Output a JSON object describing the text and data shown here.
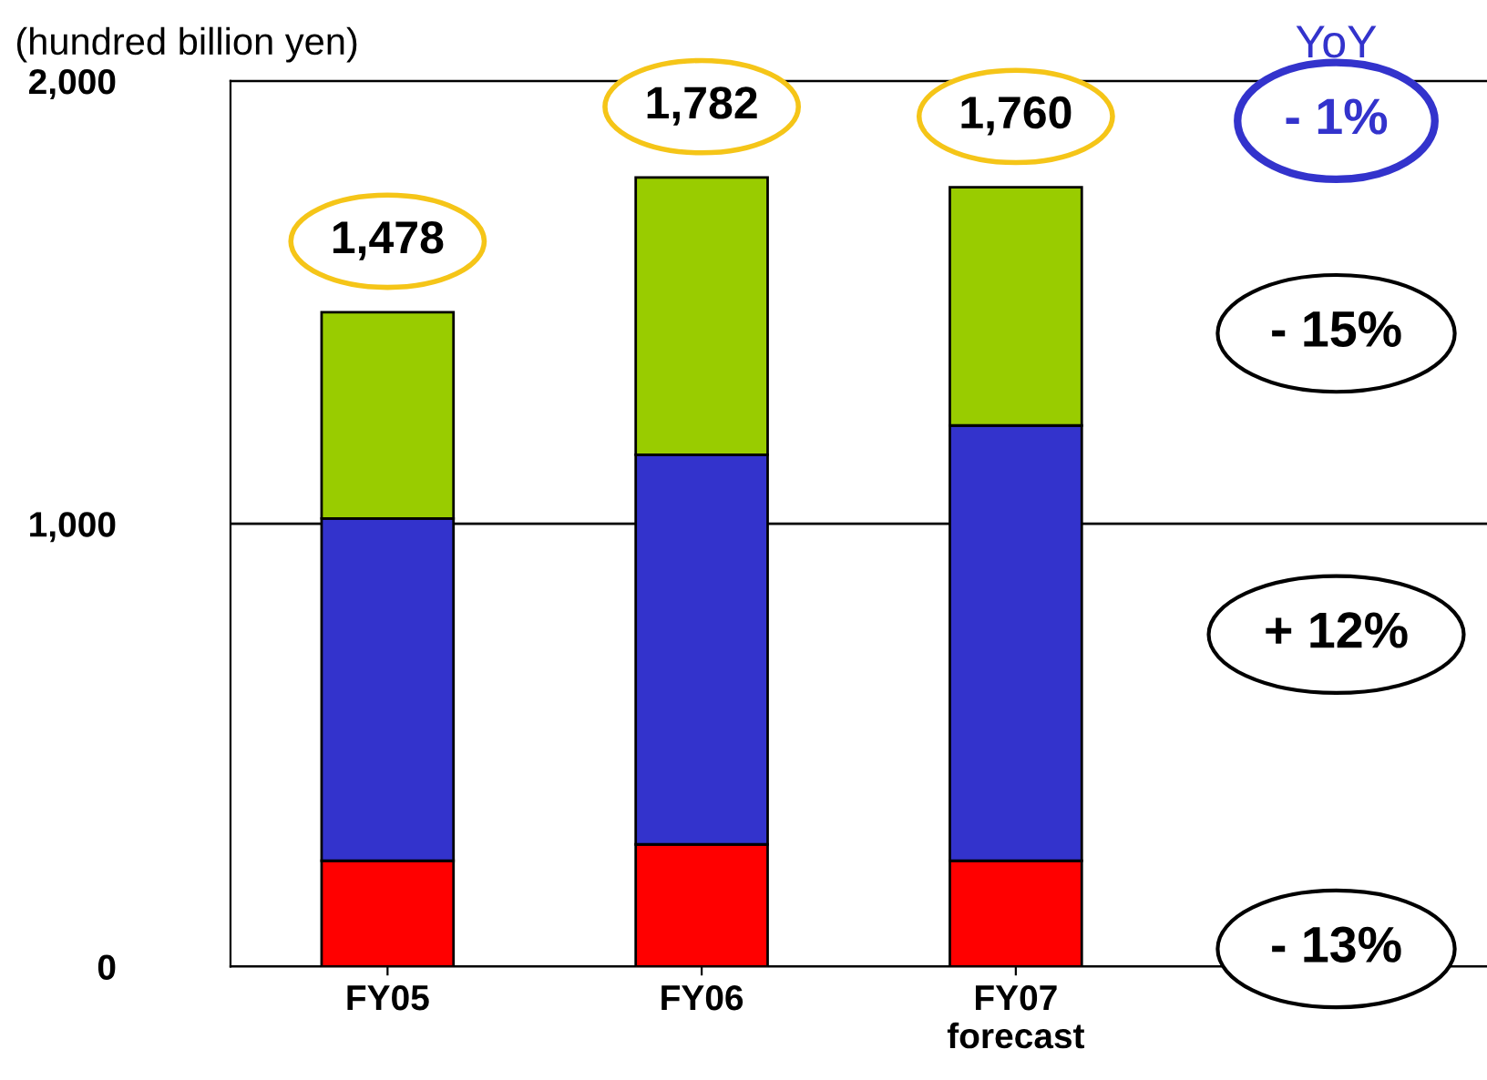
{
  "chart_data": {
    "type": "bar",
    "stacked": true,
    "ylabel": "(hundred billion yen)",
    "categories": [
      "FY05",
      "FY06",
      "FY07\nforecast"
    ],
    "series": [
      {
        "color": "#ff0000",
        "values": [
          239,
          276,
          239
        ]
      },
      {
        "color": "#3333cc",
        "values": [
          773,
          880,
          983
        ]
      },
      {
        "color": "#99cc00",
        "values": [
          466,
          626,
          538
        ]
      }
    ],
    "totals": [
      "1,478",
      "1,782",
      "1,760"
    ],
    "ylim": [
      0,
      2000
    ],
    "yticks": [
      {
        "value": 0,
        "label": "0"
      },
      {
        "value": 1000,
        "label": "1,000"
      },
      {
        "value": 2000,
        "label": "2,000"
      }
    ],
    "grid": "y",
    "legend": false,
    "annotations": [
      "YoY",
      "- 1%",
      "- 15%",
      "+ 12%",
      "- 13%"
    ]
  }
}
